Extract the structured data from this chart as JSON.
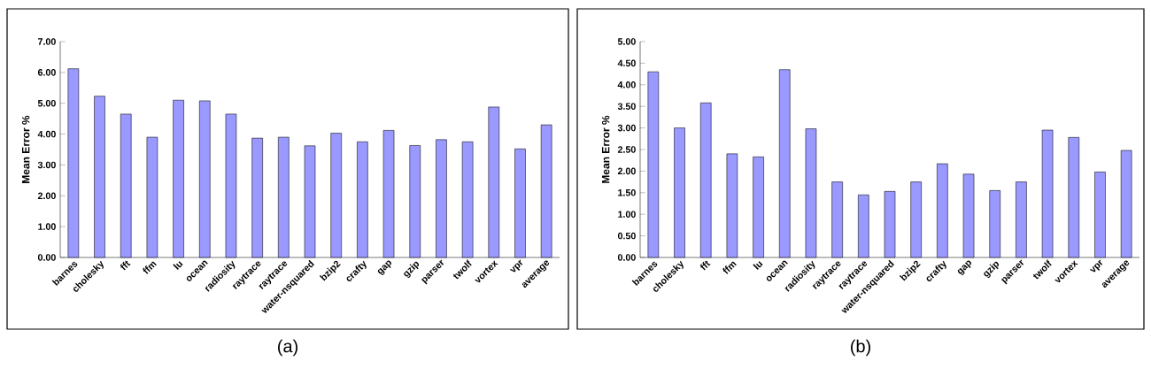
{
  "chart_data": [
    {
      "type": "bar",
      "categories": [
        "barnes",
        "cholesky",
        "fft",
        "ffm",
        "lu",
        "ocean",
        "radiosity",
        "raytrace",
        "raytrace",
        "water-nsquared",
        "bzip2",
        "crafty",
        "gap",
        "gzip",
        "parser",
        "twolf",
        "vortex",
        "vpr",
        "average"
      ],
      "values": [
        6.12,
        5.23,
        4.65,
        3.9,
        5.1,
        5.08,
        4.65,
        3.87,
        3.9,
        3.62,
        4.03,
        3.75,
        4.12,
        3.63,
        3.82,
        3.75,
        4.88,
        3.52,
        4.3
      ],
      "color": "#9999ff",
      "ylabel": "Mean Error %",
      "ylim": [
        0,
        7
      ],
      "yticks": [
        {
          "value": 0,
          "label": "0.00"
        },
        {
          "value": 1,
          "label": "1.00"
        },
        {
          "value": 2,
          "label": "2.00"
        },
        {
          "value": 3,
          "label": "3.00"
        },
        {
          "value": 4,
          "label": "4.00"
        },
        {
          "value": 5,
          "label": "5.00"
        },
        {
          "value": 6,
          "label": "6.00"
        },
        {
          "value": 7,
          "label": "7.00"
        }
      ],
      "annotations": [
        "(a)"
      ]
    },
    {
      "type": "bar",
      "categories": [
        "barnes",
        "cholesky",
        "fft",
        "ffm",
        "lu",
        "ocean",
        "radiosity",
        "raytrace",
        "raytrace",
        "water-nsquared",
        "bzip2",
        "crafty",
        "gap",
        "gzip",
        "parser",
        "twolf",
        "vortex",
        "vpr",
        "average"
      ],
      "values": [
        4.3,
        3.0,
        3.58,
        2.4,
        2.33,
        4.35,
        2.98,
        1.75,
        1.45,
        1.53,
        1.75,
        2.17,
        1.93,
        1.55,
        1.75,
        2.95,
        2.78,
        1.98,
        2.48
      ],
      "color": "#9999ff",
      "ylabel": "Mean Error %",
      "ylim": [
        0,
        5
      ],
      "yticks": [
        {
          "value": 0,
          "label": "0.00"
        },
        {
          "value": 0.5,
          "label": "0.50"
        },
        {
          "value": 1,
          "label": "1.00"
        },
        {
          "value": 1.5,
          "label": "1.50"
        },
        {
          "value": 2,
          "label": "2.00"
        },
        {
          "value": 2.5,
          "label": "2.50"
        },
        {
          "value": 3,
          "label": "3.00"
        },
        {
          "value": 3.5,
          "label": "3.50"
        },
        {
          "value": 4,
          "label": "4.00"
        },
        {
          "value": 4.5,
          "label": "4.50"
        },
        {
          "value": 5,
          "label": "5.00"
        }
      ],
      "annotations": [
        "(b)"
      ]
    }
  ]
}
